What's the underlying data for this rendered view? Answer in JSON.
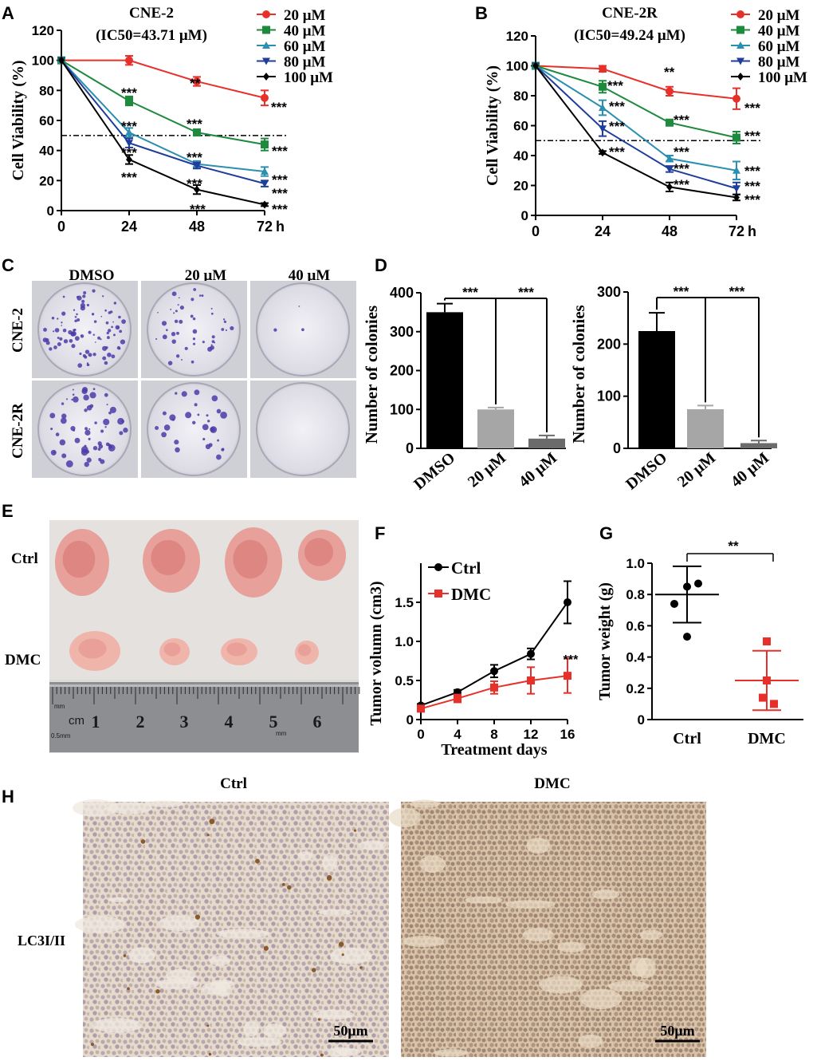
{
  "panel_letters": {
    "a": "A",
    "b": "B",
    "c": "C",
    "d": "D",
    "e": "E",
    "f": "F",
    "g": "G",
    "h": "H"
  },
  "colors": {
    "c20": "#e8302a",
    "c40": "#1e8a3e",
    "c60": "#2a8fb0",
    "c80": "#1f3e9c",
    "c100": "#000000",
    "bar_dmso": "#000000",
    "bar_20": "#a6a6a6",
    "bar_40": "#6b6b6b",
    "ctrl": "#000000",
    "dmc": "#e8302a"
  },
  "panel_c": {
    "col_labels": [
      "DMSO",
      "20 μM",
      "40 μM"
    ],
    "row_labels": [
      "CNE-2",
      "CNE-2R"
    ]
  },
  "panel_e": {
    "row_labels": [
      "Ctrl",
      "DMC"
    ],
    "ruler_unit": "cm",
    "ruler_numbers": [
      "1",
      "2",
      "3",
      "4",
      "5",
      "6"
    ],
    "ruler_small_left": "mm",
    "ruler_small_left2": "0.5mm",
    "ruler_small_right": "mm"
  },
  "panel_h": {
    "col_labels": [
      "Ctrl",
      "DMC"
    ],
    "row_label": "LC3I/II",
    "scale_bar": "50μm"
  },
  "chart_data": [
    {
      "id": "A",
      "type": "line",
      "title": "CNE-2",
      "subtitle": "(IC50=43.71 μM)",
      "ylabel": "Cell Viability (%)",
      "x": [
        0,
        24,
        48,
        72
      ],
      "x_ticks": [
        "0",
        "24",
        "48",
        "72"
      ],
      "x_unit": "h",
      "ylim": [
        0,
        120
      ],
      "y_ticks": [
        "0",
        "20",
        "40",
        "60",
        "80",
        "100",
        "120"
      ],
      "reference_line": 50,
      "series": [
        {
          "name": "20 μM",
          "marker": "circle",
          "values": [
            100,
            100,
            86,
            75
          ],
          "errors": [
            0,
            3,
            3,
            5
          ],
          "stars": [
            "",
            "",
            "**",
            "***"
          ]
        },
        {
          "name": "40 μM",
          "marker": "square",
          "values": [
            100,
            73,
            52,
            44
          ],
          "errors": [
            0,
            3,
            2,
            4
          ],
          "stars": [
            "",
            "***",
            "***",
            "***"
          ]
        },
        {
          "name": "60 μM",
          "marker": "triangle",
          "values": [
            100,
            52,
            31,
            26
          ],
          "errors": [
            0,
            3,
            2,
            3
          ],
          "stars": [
            "",
            "***",
            "***",
            "***"
          ]
        },
        {
          "name": "80 μM",
          "marker": "triangle-down",
          "values": [
            100,
            45,
            30,
            18
          ],
          "errors": [
            0,
            3,
            2,
            2
          ],
          "stars": [
            "",
            "***",
            "***",
            "***"
          ]
        },
        {
          "name": "100 μM",
          "marker": "diamond",
          "values": [
            100,
            34,
            14,
            4
          ],
          "errors": [
            0,
            3,
            3,
            1
          ],
          "stars": [
            "",
            "***",
            "***",
            "***"
          ]
        }
      ]
    },
    {
      "id": "B",
      "type": "line",
      "title": "CNE-2R",
      "subtitle": "(IC50=49.24 μM)",
      "ylabel": "Cell Viability (%)",
      "x": [
        0,
        24,
        48,
        72
      ],
      "x_ticks": [
        "0",
        "24",
        "48",
        "72"
      ],
      "x_unit": "h",
      "ylim": [
        0,
        120
      ],
      "y_ticks": [
        "0",
        "20",
        "40",
        "60",
        "80",
        "100",
        "120"
      ],
      "reference_line": 50,
      "series": [
        {
          "name": "20 μM",
          "marker": "circle",
          "values": [
            100,
            98,
            83,
            78
          ],
          "errors": [
            0,
            2,
            3,
            7
          ],
          "stars": [
            "",
            "",
            "**",
            "***"
          ]
        },
        {
          "name": "40 μM",
          "marker": "square",
          "values": [
            100,
            86,
            62,
            52
          ],
          "errors": [
            0,
            4,
            2,
            4
          ],
          "stars": [
            "",
            "***",
            "***",
            "***"
          ]
        },
        {
          "name": "60 μM",
          "marker": "triangle",
          "values": [
            100,
            72,
            38,
            30
          ],
          "errors": [
            0,
            5,
            2,
            6
          ],
          "stars": [
            "",
            "***",
            "***",
            "***"
          ]
        },
        {
          "name": "80 μM",
          "marker": "triangle-down",
          "values": [
            100,
            58,
            31,
            18
          ],
          "errors": [
            0,
            5,
            2,
            4
          ],
          "stars": [
            "",
            "***",
            "***",
            "***"
          ]
        },
        {
          "name": "100 μM",
          "marker": "diamond",
          "values": [
            100,
            42,
            19,
            12
          ],
          "errors": [
            0,
            1,
            3,
            2
          ],
          "stars": [
            "",
            "***",
            "***",
            "***"
          ]
        }
      ]
    },
    {
      "id": "D1",
      "type": "bar",
      "ylabel": "Number of colonies",
      "categories": [
        "DMSO",
        "20 μM",
        "40 μM"
      ],
      "values": [
        350,
        100,
        25
      ],
      "errors": [
        22,
        5,
        8
      ],
      "ylim": [
        0,
        400
      ],
      "y_ticks": [
        "0",
        "100",
        "200",
        "300",
        "400"
      ],
      "significance": [
        "***",
        "***"
      ]
    },
    {
      "id": "D2",
      "type": "bar",
      "ylabel": "Number of colonies",
      "categories": [
        "DMSO",
        "20 μM",
        "40 μM"
      ],
      "values": [
        225,
        75,
        10
      ],
      "errors": [
        35,
        7,
        5
      ],
      "ylim": [
        0,
        300
      ],
      "y_ticks": [
        "0",
        "100",
        "200",
        "300"
      ],
      "significance": [
        "***",
        "***"
      ]
    },
    {
      "id": "F",
      "type": "line",
      "xlabel": "Treatment days",
      "ylabel": "Tumor volumn (cm3)",
      "x": [
        0,
        4,
        8,
        12,
        16
      ],
      "x_ticks": [
        "0",
        "4",
        "8",
        "12",
        "16"
      ],
      "ylim": [
        0,
        2.0
      ],
      "y_ticks": [
        "0",
        "0.5",
        "1.0",
        "1.5"
      ],
      "series": [
        {
          "name": "Ctrl",
          "marker": "circle",
          "values": [
            0.18,
            0.35,
            0.62,
            0.84,
            1.5
          ],
          "errors": [
            0.02,
            0.03,
            0.08,
            0.07,
            0.27
          ]
        },
        {
          "name": "DMC",
          "marker": "square",
          "values": [
            0.14,
            0.27,
            0.41,
            0.5,
            0.56
          ],
          "errors": [
            0.02,
            0.05,
            0.08,
            0.17,
            0.22
          ]
        }
      ],
      "annotation": "***"
    },
    {
      "id": "G",
      "type": "scatter",
      "ylabel": "Tumor weight (g)",
      "categories": [
        "Ctrl",
        "DMC"
      ],
      "ylim": [
        0,
        1.0
      ],
      "y_ticks": [
        "0",
        "0.2",
        "0.4",
        "0.6",
        "0.8",
        "1.0"
      ],
      "points": [
        [
          0.85,
          0.74,
          0.87,
          0.53
        ],
        [
          0.5,
          0.25,
          0.14,
          0.1
        ]
      ],
      "means": [
        0.8,
        0.25
      ],
      "sd": [
        0.18,
        0.19
      ],
      "significance": "**"
    }
  ]
}
